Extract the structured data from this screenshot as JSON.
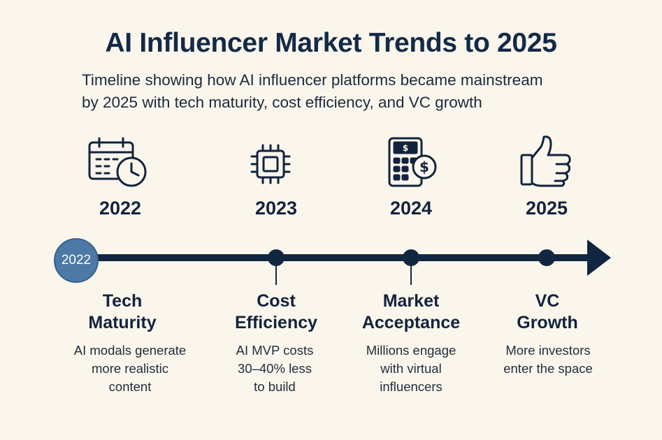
{
  "title": "AI Influencer Market Trends to 2025",
  "subtitle_line1": "Timeline showing how AI influencer platforms became mainstream",
  "subtitle_line2": "by 2025 with tech maturity, cost efficiency, and VC growth",
  "timeline": {
    "start_label": "2022",
    "milestones": [
      {
        "year": "2022",
        "icon": "calendar-clock-icon",
        "heading_line1": "Tech",
        "heading_line2": "Maturity",
        "desc_line1": "AI modals generate",
        "desc_line2": "more realistic",
        "desc_line3": "content"
      },
      {
        "year": "2023",
        "icon": "chip-icon",
        "heading_line1": "Cost",
        "heading_line2": "Efficiency",
        "desc_line1": "AI MVP costs",
        "desc_line2": "30–40% less",
        "desc_line3": "to build"
      },
      {
        "year": "2024",
        "icon": "calculator-dollar-icon",
        "heading_line1": "Market",
        "heading_line2": "Acceptance",
        "desc_line1": "Millions engage",
        "desc_line2": "with virtual",
        "desc_line3": "influencers"
      },
      {
        "year": "2025",
        "icon": "thumbs-up-icon",
        "heading_line1": "VC",
        "heading_line2": "Growth",
        "desc_line1": "More investors",
        "desc_line2": "enter the space",
        "desc_line3": ""
      }
    ]
  },
  "colors": {
    "background": "#fbf6ec",
    "navy": "#112640",
    "start_circle": "#4d79a6"
  }
}
